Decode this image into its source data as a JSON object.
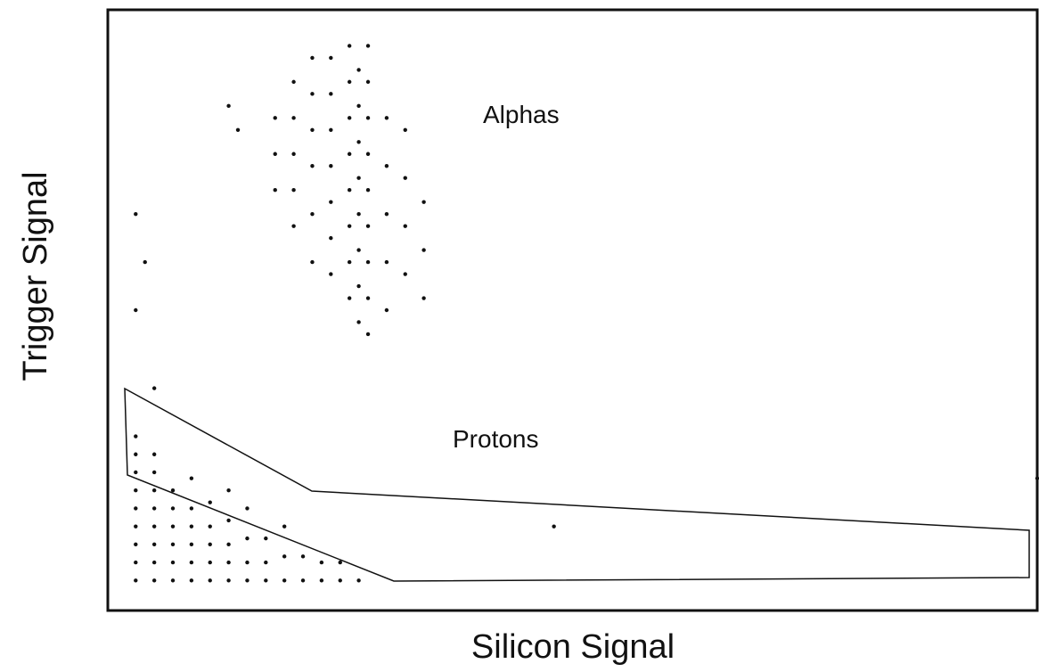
{
  "chart_data": {
    "type": "scatter",
    "xlabel": "Silicon Signal",
    "ylabel": "Trigger Signal",
    "annotations": [
      "Alphas",
      "Protons"
    ],
    "color": "#111111",
    "xlim": [
      0,
      100
    ],
    "ylim": [
      0,
      100
    ],
    "x": [
      18,
      18,
      18,
      20,
      20,
      20,
      20,
      20,
      22,
      22,
      22,
      22,
      22,
      22,
      24,
      24,
      24,
      24,
      24,
      24,
      24,
      26,
      26,
      26,
      26,
      26,
      26,
      26,
      26,
      27,
      27,
      27,
      27,
      27,
      27,
      27,
      27,
      28,
      28,
      28,
      28,
      28,
      28,
      28,
      28,
      28,
      30,
      30,
      30,
      30,
      30,
      32,
      32,
      32,
      32,
      34,
      34,
      34,
      3,
      4,
      3,
      13,
      14,
      3,
      3,
      3,
      3,
      3,
      3,
      3,
      3,
      3,
      5,
      5,
      5,
      5,
      5,
      5,
      5,
      5,
      7,
      7,
      7,
      7,
      7,
      7,
      9,
      9,
      9,
      9,
      9,
      9,
      11,
      11,
      11,
      11,
      11,
      13,
      13,
      13,
      13,
      13,
      15,
      15,
      15,
      15,
      17,
      17,
      17,
      19,
      19,
      19,
      21,
      21,
      23,
      23,
      25,
      25,
      27,
      5,
      48,
      100
    ],
    "values": [
      70,
      76,
      82,
      64,
      70,
      76,
      82,
      88,
      58,
      66,
      74,
      80,
      86,
      92,
      56,
      62,
      68,
      74,
      80,
      86,
      92,
      52,
      58,
      64,
      70,
      76,
      82,
      88,
      94,
      48,
      54,
      60,
      66,
      72,
      78,
      84,
      90,
      46,
      52,
      58,
      64,
      70,
      76,
      82,
      88,
      94,
      50,
      58,
      66,
      74,
      82,
      56,
      64,
      72,
      80,
      52,
      60,
      68,
      50,
      58,
      66,
      84,
      80,
      5,
      8,
      11,
      14,
      17,
      20,
      23,
      26,
      29,
      5,
      8,
      11,
      14,
      17,
      20,
      23,
      26,
      5,
      8,
      11,
      14,
      17,
      20,
      5,
      8,
      11,
      14,
      17,
      22,
      5,
      8,
      11,
      14,
      18,
      5,
      8,
      11,
      15,
      20,
      5,
      8,
      12,
      17,
      5,
      8,
      12,
      5,
      9,
      14,
      5,
      9,
      5,
      8,
      5,
      8,
      5,
      37,
      14,
      22
    ]
  }
}
